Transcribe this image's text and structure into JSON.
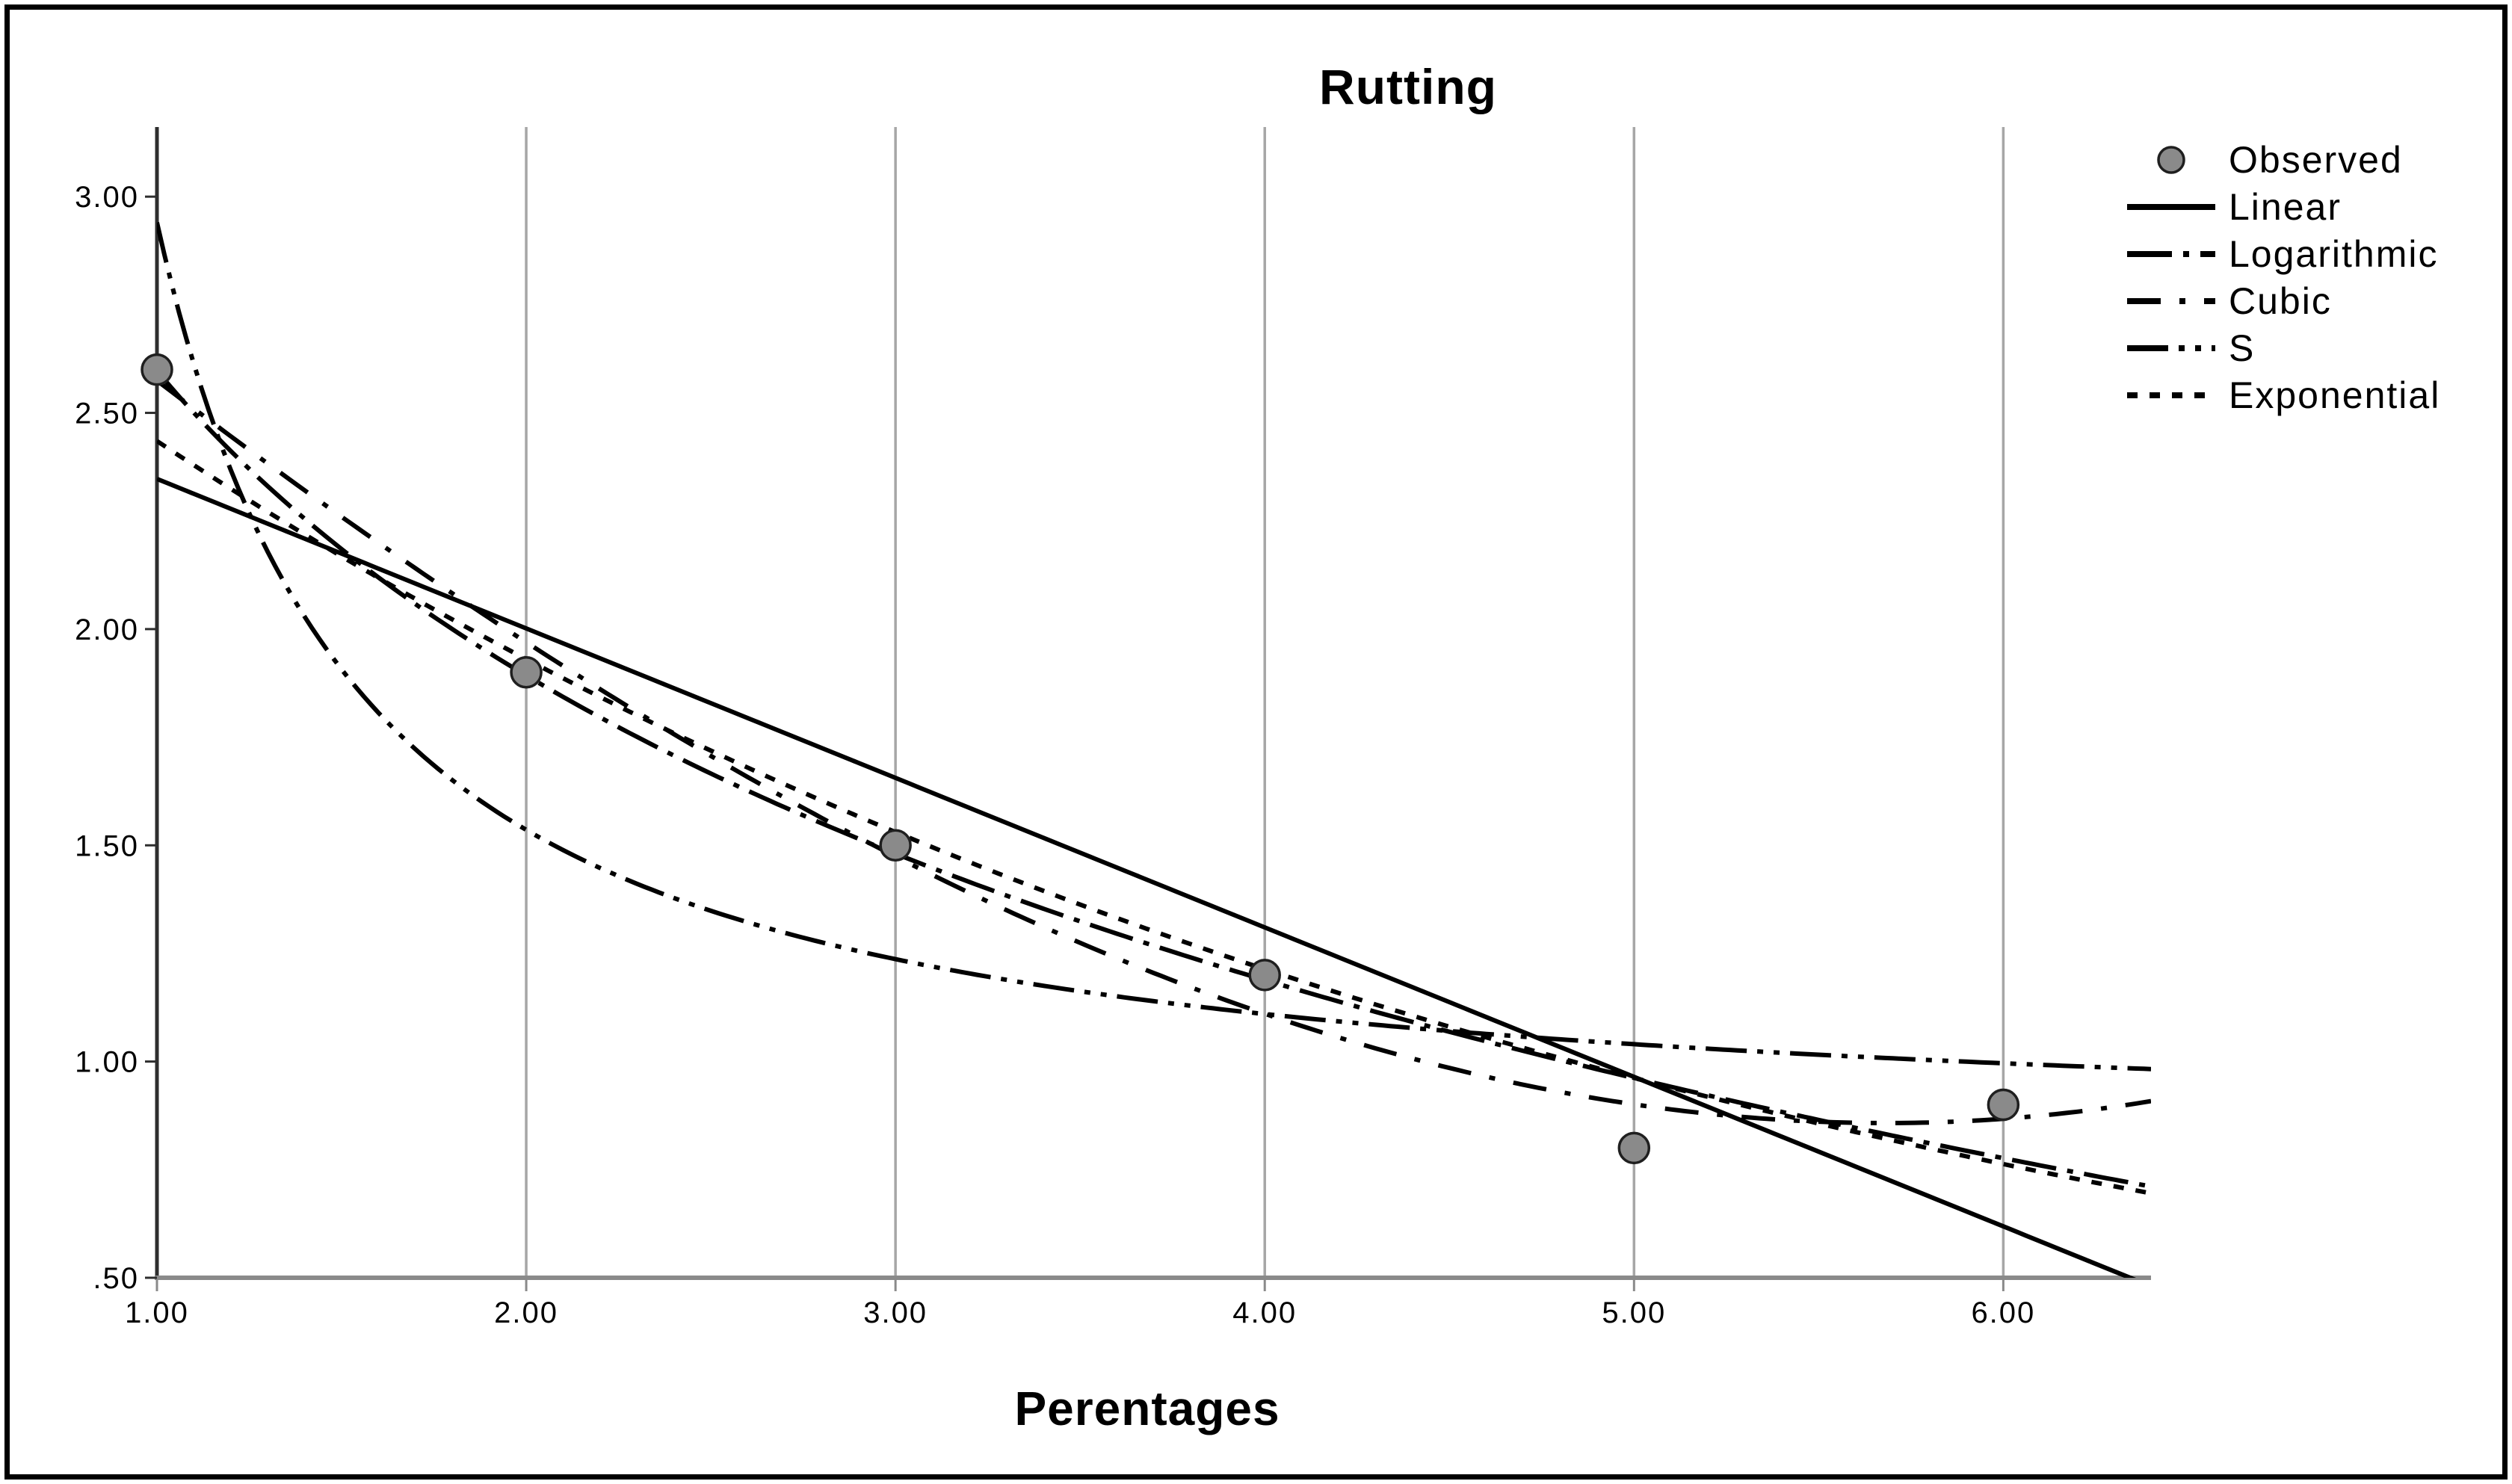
{
  "figure": {
    "background": "#ffffff",
    "border_color": "#000000"
  },
  "chart_data": {
    "type": "line",
    "title": "Rutting",
    "xlabel": "Perentages",
    "ylabel": "",
    "legend_position": "top-right",
    "grid": "vertical-only",
    "x_range": [
      1.0,
      6.4
    ],
    "y_range": [
      0.5,
      3.161
    ],
    "x_ticks": [
      {
        "label": "1.00",
        "value": 1.0
      },
      {
        "label": "2.00",
        "value": 2.0
      },
      {
        "label": "3.00",
        "value": 3.0
      },
      {
        "label": "4.00",
        "value": 4.0
      },
      {
        "label": "5.00",
        "value": 5.0
      },
      {
        "label": "6.00",
        "value": 6.0
      }
    ],
    "y_ticks": [
      {
        "label": ".50",
        "value": 0.5
      },
      {
        "label": "1.00",
        "value": 1.0
      },
      {
        "label": "1.50",
        "value": 1.5
      },
      {
        "label": "2.00",
        "value": 2.0
      },
      {
        "label": "2.50",
        "value": 2.5
      },
      {
        "label": "3.00",
        "value": 3.0
      }
    ],
    "observed": {
      "name": "Observed",
      "marker_color": "#8a8a8a",
      "marker_edge_color": "#1f1f1f",
      "points": [
        {
          "x": 1.0,
          "y": 2.6
        },
        {
          "x": 2.0,
          "y": 1.9
        },
        {
          "x": 3.0,
          "y": 1.5
        },
        {
          "x": 4.0,
          "y": 1.2
        },
        {
          "x": 5.0,
          "y": 0.8
        },
        {
          "x": 6.0,
          "y": 0.9
        }
      ]
    },
    "series": [
      {
        "name": "Linear",
        "model": "linear",
        "params": [
          2.693,
          -0.3457
        ],
        "dash": ""
      },
      {
        "name": "Logarithmic",
        "model": "logarithmic",
        "params": [
          2.597,
          -1.016
        ],
        "dash": "60 15 8 15"
      },
      {
        "name": "Cubic",
        "model": "cubic",
        "params": [
          3.267,
          -0.7287,
          0.0326,
          0.0037
        ],
        "dash": "45 25 8 25"
      },
      {
        "name": "S",
        "model": "s_curve",
        "params": [
          -0.2205,
          1.299
        ],
        "dash": "55 14 8 14 8 14"
      },
      {
        "name": "Exponential",
        "model": "exponential",
        "params": [
          3.071,
          -0.2321
        ],
        "dash": "14 16"
      }
    ],
    "line_color": "#000000",
    "gridline_color": "#a6a6a6",
    "y_axis_color": "#2e2e2e",
    "x_axis_color": "#8a8a8a",
    "tick_label_color": "#000000"
  }
}
